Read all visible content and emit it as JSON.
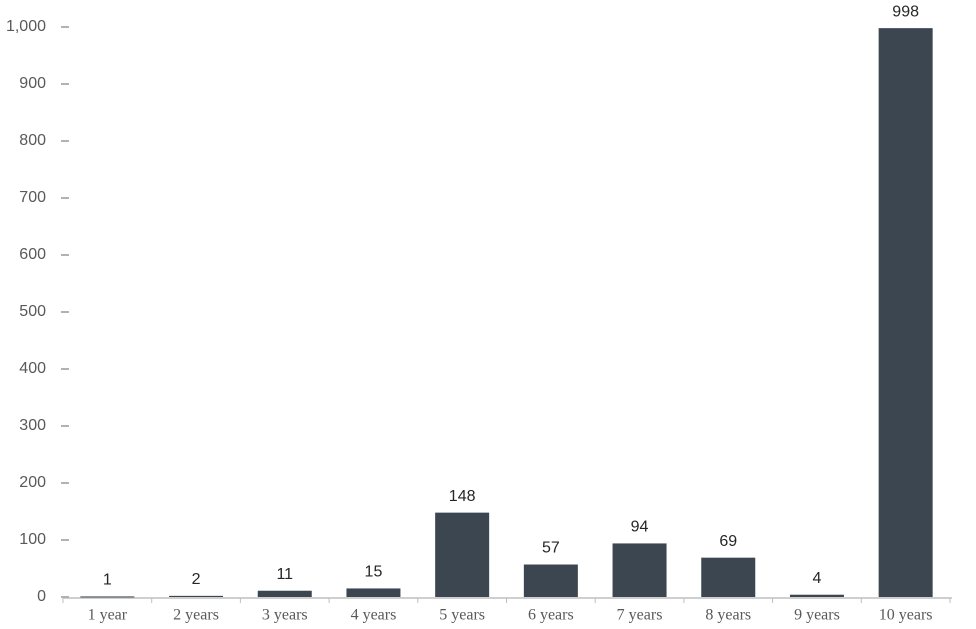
{
  "chart_data": {
    "type": "bar",
    "categories": [
      "1 year",
      "2 years",
      "3 years",
      "4 years",
      "5 years",
      "6 years",
      "7 years",
      "8 years",
      "9 years",
      "10 years"
    ],
    "values": [
      1,
      2,
      11,
      15,
      148,
      57,
      94,
      69,
      4,
      998
    ],
    "color": "#3b4651",
    "ylim": [
      0,
      1000
    ],
    "yticks": [
      0,
      100,
      200,
      300,
      400,
      500,
      600,
      700,
      800,
      900,
      {
        "value": 1000,
        "label": "1,000"
      }
    ],
    "grid": false
  }
}
